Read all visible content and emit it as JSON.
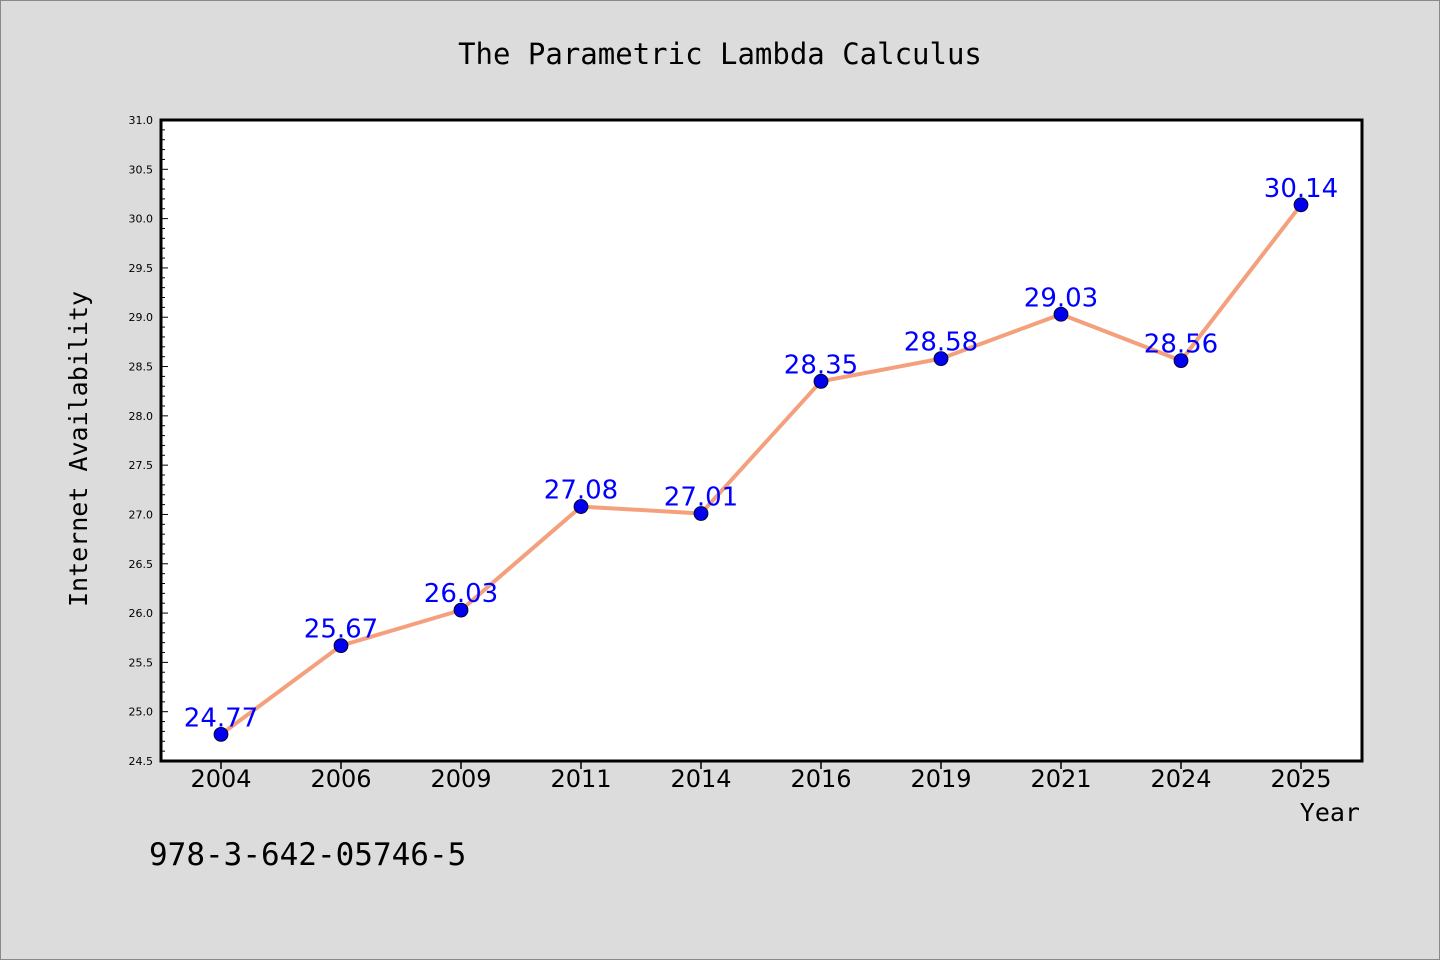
{
  "figure": {
    "background": "#dcdcdc",
    "footer_text": "978-3-642-05746-5"
  },
  "chart_data": {
    "type": "line",
    "title": "The Parametric Lambda Calculus",
    "xlabel": "Year",
    "ylabel": "Internet Availability",
    "categories": [
      "2004",
      "2006",
      "2009",
      "2011",
      "2014",
      "2016",
      "2019",
      "2021",
      "2024",
      "2025"
    ],
    "series": [
      {
        "values": [
          24.77,
          25.67,
          26.03,
          27.08,
          27.01,
          28.35,
          28.58,
          29.03,
          28.56,
          30.14
        ],
        "line_color": "#f4a07c",
        "marker_color": "#0000ee",
        "label_color": "#0000ff"
      }
    ],
    "data_labels": [
      "24.77",
      "25.67",
      "26.03",
      "27.08",
      "27.01",
      "28.35",
      "28.58",
      "29.03",
      "28.56",
      "30.14"
    ],
    "ylim": [
      24.5,
      31.0
    ],
    "yticks": [
      "24.5",
      "25.0",
      "25.5",
      "26.0",
      "26.5",
      "27.0",
      "27.5",
      "28.0",
      "28.5",
      "29.0",
      "29.5",
      "30.0",
      "30.5",
      "31.0"
    ],
    "grid": false,
    "plot_background": "#ffffff"
  }
}
